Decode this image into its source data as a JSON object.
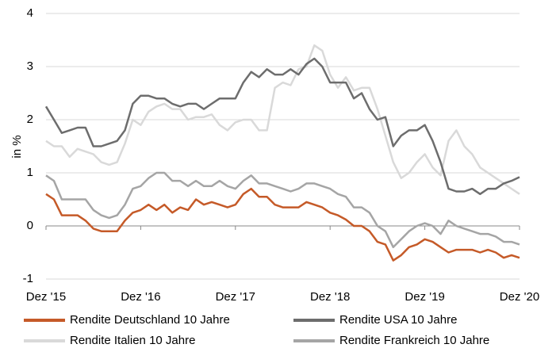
{
  "chart_data": {
    "type": "line",
    "ylabel": "in %",
    "categories": [
      "Dez '15",
      null,
      null,
      null,
      null,
      null,
      null,
      null,
      null,
      null,
      null,
      null,
      "Dez '16",
      null,
      null,
      null,
      null,
      null,
      null,
      null,
      null,
      null,
      null,
      null,
      "Dez '17",
      null,
      null,
      null,
      null,
      null,
      null,
      null,
      null,
      null,
      null,
      null,
      "Dez '18",
      null,
      null,
      null,
      null,
      null,
      null,
      null,
      null,
      null,
      null,
      null,
      "Dez '19",
      null,
      null,
      null,
      null,
      null,
      null,
      null,
      null,
      null,
      null,
      null,
      "Dez '20"
    ],
    "ylim": [
      -1,
      4
    ],
    "yticks": [
      -1,
      0,
      1,
      2,
      3,
      4
    ],
    "grid": true,
    "series": [
      {
        "name": "Rendite Deutschland 10 Jahre",
        "color": "#c55a28",
        "values": [
          0.6,
          0.5,
          0.2,
          0.2,
          0.2,
          0.1,
          -0.05,
          -0.1,
          -0.1,
          -0.1,
          0.1,
          0.25,
          0.3,
          0.4,
          0.3,
          0.4,
          0.25,
          0.35,
          0.3,
          0.5,
          0.4,
          0.45,
          0.4,
          0.35,
          0.4,
          0.6,
          0.7,
          0.55,
          0.55,
          0.4,
          0.35,
          0.35,
          0.35,
          0.45,
          0.4,
          0.35,
          0.25,
          0.2,
          0.12,
          0.0,
          0.0,
          -0.1,
          -0.3,
          -0.35,
          -0.65,
          -0.55,
          -0.4,
          -0.35,
          -0.25,
          -0.3,
          -0.4,
          -0.5,
          -0.45,
          -0.45,
          -0.45,
          -0.5,
          -0.45,
          -0.5,
          -0.6,
          -0.55,
          -0.6
        ]
      },
      {
        "name": "Rendite USA 10 Jahre",
        "color": "#6d6d6d",
        "values": [
          2.25,
          2.0,
          1.75,
          1.8,
          1.85,
          1.85,
          1.5,
          1.5,
          1.55,
          1.6,
          1.8,
          2.3,
          2.45,
          2.45,
          2.4,
          2.4,
          2.3,
          2.25,
          2.3,
          2.3,
          2.2,
          2.3,
          2.4,
          2.4,
          2.4,
          2.7,
          2.9,
          2.8,
          2.95,
          2.85,
          2.85,
          2.95,
          2.85,
          3.05,
          3.15,
          3.0,
          2.7,
          2.7,
          2.7,
          2.4,
          2.5,
          2.2,
          2.0,
          2.05,
          1.5,
          1.7,
          1.8,
          1.8,
          1.9,
          1.6,
          1.2,
          0.7,
          0.65,
          0.65,
          0.7,
          0.6,
          0.7,
          0.7,
          0.8,
          0.85,
          0.92
        ]
      },
      {
        "name": "Rendite Italien 10 Jahre",
        "color": "#d9d9d9",
        "values": [
          1.6,
          1.5,
          1.5,
          1.3,
          1.45,
          1.4,
          1.35,
          1.2,
          1.15,
          1.2,
          1.55,
          2.0,
          1.9,
          2.15,
          2.25,
          2.3,
          2.2,
          2.2,
          2.0,
          2.05,
          2.05,
          2.1,
          1.9,
          1.8,
          1.95,
          2.0,
          2.0,
          1.8,
          1.8,
          2.6,
          2.7,
          2.65,
          2.95,
          3.0,
          3.4,
          3.3,
          2.85,
          2.6,
          2.8,
          2.55,
          2.6,
          2.6,
          2.2,
          1.7,
          1.2,
          0.9,
          1.0,
          1.2,
          1.35,
          1.1,
          0.95,
          1.6,
          1.8,
          1.5,
          1.35,
          1.1,
          1.0,
          0.9,
          0.8,
          0.7,
          0.6
        ]
      },
      {
        "name": "Rendite Frankreich 10 Jahre",
        "color": "#a5a5a5",
        "values": [
          0.95,
          0.85,
          0.5,
          0.5,
          0.5,
          0.5,
          0.3,
          0.2,
          0.15,
          0.2,
          0.4,
          0.7,
          0.75,
          0.9,
          1.0,
          1.0,
          0.85,
          0.85,
          0.75,
          0.85,
          0.75,
          0.75,
          0.85,
          0.75,
          0.7,
          0.85,
          0.95,
          0.8,
          0.8,
          0.75,
          0.7,
          0.65,
          0.7,
          0.8,
          0.8,
          0.75,
          0.7,
          0.6,
          0.55,
          0.35,
          0.35,
          0.25,
          0.0,
          -0.1,
          -0.4,
          -0.25,
          -0.1,
          0.0,
          0.05,
          0.0,
          -0.15,
          0.1,
          0.0,
          -0.05,
          -0.1,
          -0.15,
          -0.15,
          -0.2,
          -0.3,
          -0.3,
          -0.35
        ]
      }
    ]
  }
}
